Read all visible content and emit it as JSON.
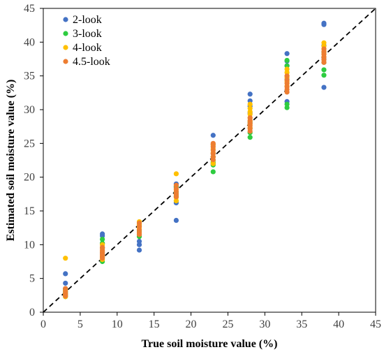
{
  "chart_data": {
    "type": "scatter",
    "title": "",
    "xlabel": "True soil moisture value (%)",
    "ylabel": "Estimated soil moisture value (%)",
    "xlim": [
      0,
      45
    ],
    "ylim": [
      0,
      45
    ],
    "xticks": [
      "0",
      "5",
      "10",
      "15",
      "20",
      "25",
      "30",
      "35",
      "40",
      "45"
    ],
    "yticks": [
      "0",
      "5",
      "10",
      "15",
      "20",
      "25",
      "30",
      "35",
      "40",
      "45"
    ],
    "grid": false,
    "legend_position": "top-left",
    "reference_line": "1:1 dashed",
    "series": [
      {
        "name": "2-look",
        "color": "#4472C4",
        "x": [
          3,
          3,
          3,
          3,
          3,
          8,
          8,
          8,
          8,
          8,
          13,
          13,
          13,
          13,
          13,
          18,
          18,
          18,
          18,
          18,
          23,
          23,
          23,
          23,
          23,
          28,
          28,
          28,
          28,
          28,
          33,
          33,
          33,
          33,
          33,
          38,
          38,
          38,
          38,
          38
        ],
        "y": [
          5.7,
          4.3,
          3.5,
          2.8,
          3.2,
          11.6,
          11.3,
          10.2,
          9.5,
          8.8,
          10.5,
          10.0,
          9.2,
          11.5,
          13.0,
          13.6,
          16.2,
          17.5,
          18.5,
          19.0,
          26.2,
          24.8,
          23.5,
          22.5,
          22.0,
          32.3,
          31.3,
          30.5,
          29.5,
          28.0,
          38.3,
          37.2,
          36.5,
          31.2,
          34.5,
          42.8,
          42.6,
          33.3,
          37.5,
          39.5
        ]
      },
      {
        "name": "3-look",
        "color": "#2ECC40",
        "x": [
          3,
          3,
          3,
          3,
          8,
          8,
          8,
          8,
          13,
          13,
          13,
          13,
          18,
          18,
          18,
          18,
          23,
          23,
          23,
          23,
          28,
          28,
          28,
          28,
          33,
          33,
          33,
          33,
          38,
          38,
          38,
          38
        ],
        "y": [
          3.4,
          3.0,
          2.6,
          2.3,
          10.8,
          10.2,
          7.5,
          8.2,
          12.0,
          11.2,
          12.8,
          13.3,
          16.5,
          17.2,
          18.6,
          17.8,
          20.8,
          21.8,
          22.2,
          23.0,
          25.9,
          26.6,
          27.3,
          28.2,
          30.3,
          30.8,
          36.5,
          37.3,
          35.9,
          35.1,
          38.5,
          37.0
        ]
      },
      {
        "name": "4-look",
        "color": "#FFC000",
        "x": [
          3,
          3,
          3,
          3,
          3,
          8,
          8,
          8,
          8,
          8,
          8,
          13,
          13,
          13,
          13,
          13,
          18,
          18,
          18,
          18,
          18,
          23,
          23,
          23,
          23,
          23,
          23,
          28,
          28,
          28,
          28,
          28,
          28,
          28,
          28,
          33,
          33,
          33,
          33,
          33,
          38,
          38,
          38,
          38,
          38,
          38
        ],
        "y": [
          8.0,
          3.2,
          2.8,
          2.5,
          2.3,
          9.5,
          9.0,
          8.5,
          10.0,
          8.2,
          7.8,
          13.4,
          12.6,
          12.3,
          11.8,
          13.0,
          20.5,
          18.2,
          17.5,
          17.0,
          16.5,
          24.8,
          24.2,
          23.6,
          23.0,
          22.5,
          22.0,
          30.8,
          30.2,
          29.7,
          29.3,
          28.8,
          28.3,
          27.8,
          27.3,
          36.0,
          35.5,
          34.8,
          34.2,
          33.5,
          39.9,
          39.4,
          39.0,
          38.6,
          38.2,
          37.8
        ]
      },
      {
        "name": "4.5-look",
        "color": "#ED7D31",
        "x": [
          3,
          3,
          3,
          3,
          3,
          8,
          8,
          8,
          8,
          8,
          8,
          13,
          13,
          13,
          13,
          13,
          18,
          18,
          18,
          18,
          18,
          23,
          23,
          23,
          23,
          23,
          23,
          28,
          28,
          28,
          28,
          28,
          28,
          33,
          33,
          33,
          33,
          33,
          33,
          38,
          38,
          38,
          38,
          38,
          38
        ],
        "y": [
          3.5,
          3.1,
          2.8,
          2.6,
          2.4,
          9.6,
          9.2,
          8.9,
          8.6,
          8.3,
          8.0,
          13.2,
          12.7,
          12.2,
          11.8,
          11.5,
          18.8,
          18.3,
          17.9,
          17.5,
          17.1,
          25.0,
          24.5,
          24.0,
          23.5,
          23.0,
          22.6,
          28.8,
          28.4,
          28.0,
          27.6,
          27.2,
          26.8,
          35.0,
          34.4,
          33.9,
          33.4,
          33.0,
          32.6,
          39.0,
          38.6,
          38.2,
          37.8,
          37.4,
          37.0
        ]
      }
    ]
  }
}
